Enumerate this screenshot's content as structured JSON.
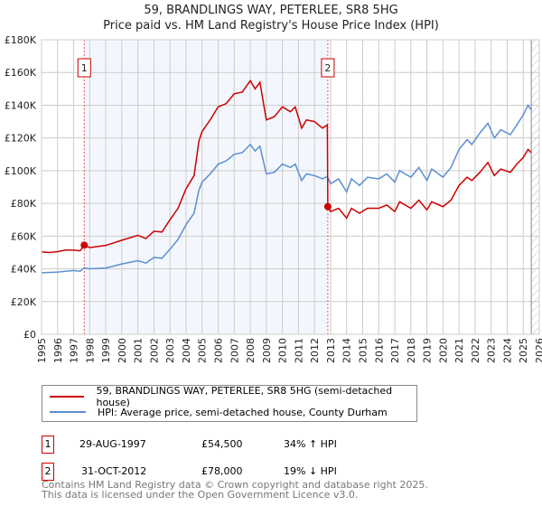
{
  "chart_data": {
    "type": "line",
    "title": "59, BRANDLINGS WAY, PETERLEE, SR8 5HG",
    "subtitle": "Price paid vs. HM Land Registry's House Price Index (HPI)",
    "xlim": [
      1995,
      2026
    ],
    "ylim": [
      0,
      180000
    ],
    "y_ticks": [
      {
        "v": 0,
        "label": "£0"
      },
      {
        "v": 20000,
        "label": "£20K"
      },
      {
        "v": 40000,
        "label": "£40K"
      },
      {
        "v": 60000,
        "label": "£60K"
      },
      {
        "v": 80000,
        "label": "£80K"
      },
      {
        "v": 100000,
        "label": "£100K"
      },
      {
        "v": 120000,
        "label": "£120K"
      },
      {
        "v": 140000,
        "label": "£140K"
      },
      {
        "v": 160000,
        "label": "£160K"
      },
      {
        "v": 180000,
        "label": "£180K"
      }
    ],
    "x_ticks": [
      "1995",
      "1996",
      "1997",
      "1998",
      "1999",
      "2000",
      "2001",
      "2002",
      "2003",
      "2004",
      "2005",
      "2006",
      "2007",
      "2008",
      "2009",
      "2010",
      "2011",
      "2012",
      "2013",
      "2014",
      "2015",
      "2016",
      "2017",
      "2018",
      "2019",
      "2020",
      "2021",
      "2022",
      "2023",
      "2024",
      "2025",
      "2026"
    ],
    "grid": true,
    "series": [
      {
        "name": "59, BRANDLINGS WAY, PETERLEE, SR8 5HG (semi-detached house)",
        "color": "#cc0000",
        "x": [
          1995,
          1995.5,
          1996,
          1996.5,
          1997,
          1997.4,
          1997.66,
          1998,
          1999,
          2000,
          2001,
          2001.5,
          2002,
          2002.5,
          2003,
          2003.5,
          2004,
          2004.5,
          2004.8,
          2005,
          2005.5,
          2006,
          2006.5,
          2007,
          2007.5,
          2008,
          2008.3,
          2008.6,
          2009,
          2009.5,
          2010,
          2010.5,
          2010.8,
          2011.2,
          2011.5,
          2012,
          2012.5,
          2012.8,
          2012.83,
          2013,
          2013.5,
          2014,
          2014.3,
          2014.8,
          2015.3,
          2016,
          2016.5,
          2017,
          2017.3,
          2018,
          2018.5,
          2019,
          2019.3,
          2020,
          2020.5,
          2021,
          2021.5,
          2021.8,
          2022.3,
          2022.8,
          2023.2,
          2023.6,
          2024.2,
          2024.6,
          2025,
          2025.3,
          2025.5
        ],
        "y": [
          50400,
          50000,
          50500,
          51500,
          51500,
          51000,
          54500,
          53000,
          54300,
          57500,
          60500,
          58500,
          63000,
          62500,
          70000,
          77000,
          89000,
          97000,
          118000,
          124000,
          131000,
          139000,
          141000,
          147000,
          148000,
          155000,
          150000,
          154000,
          131000,
          133000,
          139000,
          136000,
          139000,
          126000,
          131000,
          130000,
          126000,
          128000,
          78000,
          75000,
          77000,
          71000,
          77000,
          74000,
          77000,
          77000,
          79000,
          75000,
          81000,
          77000,
          82000,
          76000,
          81000,
          78000,
          82000,
          91000,
          96000,
          94000,
          99000,
          105000,
          97000,
          101000,
          99000,
          104000,
          108000,
          113000,
          111000
        ]
      },
      {
        "name": "HPI: Average price, semi-detached house, County Durham",
        "color": "#5b8fd0",
        "x": [
          1995,
          1995.5,
          1996,
          1996.5,
          1997,
          1997.4,
          1997.66,
          1998,
          1999,
          2000,
          2001,
          2001.5,
          2002,
          2002.5,
          2003,
          2003.5,
          2004,
          2004.5,
          2004.8,
          2005,
          2005.5,
          2006,
          2006.5,
          2007,
          2007.5,
          2008,
          2008.3,
          2008.6,
          2009,
          2009.5,
          2010,
          2010.5,
          2010.8,
          2011.2,
          2011.5,
          2012,
          2012.5,
          2012.8,
          2013,
          2013.5,
          2014,
          2014.3,
          2014.8,
          2015.3,
          2016,
          2016.5,
          2017,
          2017.3,
          2018,
          2018.5,
          2019,
          2019.3,
          2020,
          2020.5,
          2021,
          2021.5,
          2021.8,
          2022.3,
          2022.8,
          2023.2,
          2023.6,
          2024.2,
          2024.6,
          2025,
          2025.3,
          2025.5
        ],
        "y": [
          37600,
          37800,
          38000,
          38500,
          39000,
          38500,
          40700,
          40000,
          40500,
          43000,
          45000,
          43500,
          47000,
          46500,
          52000,
          58000,
          67000,
          74000,
          88000,
          93000,
          98000,
          104000,
          106000,
          110000,
          111000,
          116000,
          112000,
          115000,
          98000,
          99000,
          104000,
          102000,
          104000,
          94000,
          98000,
          97000,
          95000,
          96500,
          92000,
          95000,
          87000,
          95000,
          91000,
          96000,
          95000,
          98000,
          93000,
          100000,
          96000,
          102000,
          94000,
          101000,
          96000,
          102000,
          113000,
          119000,
          116000,
          123000,
          129000,
          120000,
          125000,
          122000,
          128000,
          134000,
          140000,
          137000
        ]
      }
    ],
    "sales": [
      {
        "label": "1",
        "x": 1997.66,
        "y": 54500
      },
      {
        "label": "2",
        "x": 2012.83,
        "y": 78000
      }
    ],
    "shaded_range": [
      1997.66,
      2012.83
    ],
    "forecast_from": 2025.5,
    "legend_placement": "below"
  },
  "legend": {
    "red": "59, BRANDLINGS WAY, PETERLEE, SR8 5HG (semi-detached house)",
    "blue": "HPI: Average price, semi-detached house, County Durham"
  },
  "transactions": [
    {
      "num": "1",
      "date": "29-AUG-1997",
      "price": "£54,500",
      "hpi": "34% ↑ HPI"
    },
    {
      "num": "2",
      "date": "31-OCT-2012",
      "price": "£78,000",
      "hpi": "19% ↓ HPI"
    }
  ],
  "footer": {
    "line1": "Contains HM Land Registry data © Crown copyright and database right 2025.",
    "line2": "This data is licensed under the Open Government Licence v3.0."
  }
}
